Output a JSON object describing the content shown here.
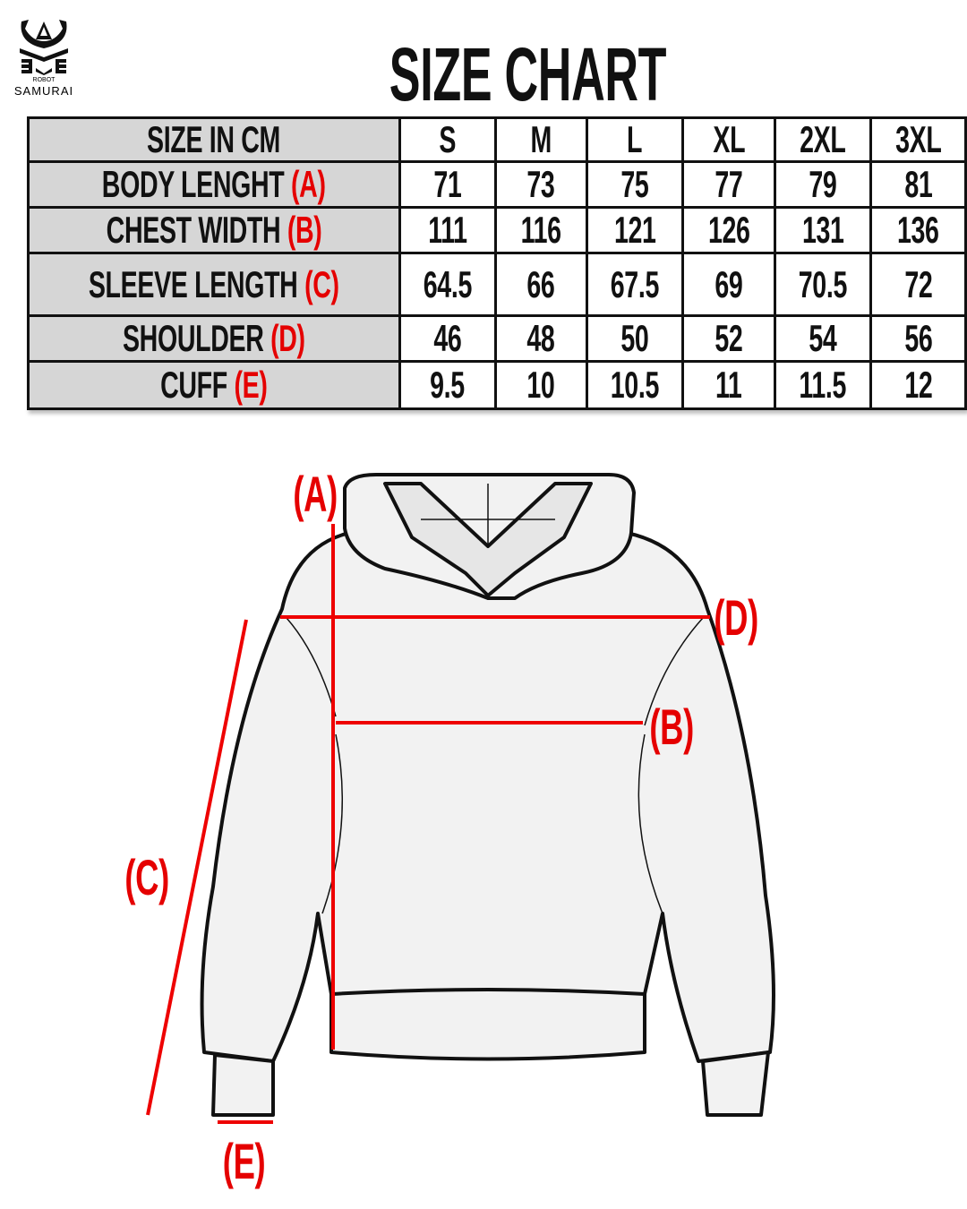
{
  "brand": {
    "line1": "ROBOT",
    "line2": "SAMURAI"
  },
  "title": "SIZE CHART",
  "colors": {
    "accent": "#e50000",
    "header_bg": "#d6d6d6",
    "border": "#111111"
  },
  "table": {
    "corner": "SIZE IN CM",
    "sizes": [
      "S",
      "M",
      "L",
      "XL",
      "2XL",
      "3XL"
    ],
    "rows": [
      {
        "label": "BODY LENGHT",
        "code": "(A)",
        "values": [
          "71",
          "73",
          "75",
          "77",
          "79",
          "81"
        ]
      },
      {
        "label": "CHEST WIDTH",
        "code": "(B)",
        "values": [
          "111",
          "116",
          "121",
          "126",
          "131",
          "136"
        ]
      },
      {
        "label": "SLEEVE LENGTH",
        "code": "(C)",
        "values": [
          "64.5",
          "66",
          "67.5",
          "69",
          "70.5",
          "72"
        ]
      },
      {
        "label": "SHOULDER",
        "code": "(D)",
        "values": [
          "46",
          "48",
          "50",
          "52",
          "54",
          "56"
        ]
      },
      {
        "label": "CUFF",
        "code": "(E)",
        "values": [
          "9.5",
          "10",
          "10.5",
          "11",
          "11.5",
          "12"
        ]
      }
    ]
  },
  "diagram": {
    "labels": {
      "a": "(A)",
      "b": "(B)",
      "c": "(C)",
      "d": "(D)",
      "e": "(E)"
    }
  }
}
